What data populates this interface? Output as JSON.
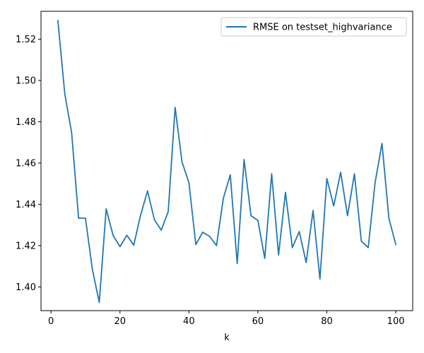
{
  "chart_data": {
    "type": "line",
    "title": "",
    "xlabel": "k",
    "ylabel": "",
    "xlim": [
      -2.9,
      104.9
    ],
    "ylim": [
      1.3885,
      1.5335
    ],
    "xticks": [
      0,
      20,
      40,
      60,
      80,
      100
    ],
    "yticks": [
      1.4,
      1.42,
      1.44,
      1.46,
      1.48,
      1.5,
      1.52
    ],
    "ytick_labels": [
      "1.40",
      "1.42",
      "1.44",
      "1.46",
      "1.48",
      "1.50",
      "1.52"
    ],
    "grid": false,
    "legend_position": "top-right",
    "series": [
      {
        "name": "RMSE on testset_highvariance",
        "color": "#1f77b4",
        "x": [
          2,
          4,
          6,
          8,
          10,
          12,
          14,
          16,
          18,
          20,
          22,
          24,
          26,
          28,
          30,
          32,
          34,
          36,
          38,
          40,
          42,
          44,
          46,
          48,
          50,
          52,
          54,
          56,
          58,
          60,
          62,
          64,
          66,
          68,
          70,
          72,
          74,
          76,
          78,
          80,
          82,
          84,
          86,
          88,
          90,
          92,
          94,
          96,
          98,
          100
        ],
        "values": [
          1.529,
          1.4935,
          1.4745,
          1.4333,
          1.4333,
          1.4085,
          1.3925,
          1.4378,
          1.425,
          1.4195,
          1.425,
          1.4202,
          1.4348,
          1.4465,
          1.4325,
          1.4275,
          1.4365,
          1.487,
          1.4605,
          1.4505,
          1.4205,
          1.4265,
          1.4245,
          1.42,
          1.443,
          1.4543,
          1.4113,
          1.4617,
          1.4345,
          1.4322,
          1.4138,
          1.4548,
          1.4155,
          1.4458,
          1.419,
          1.4268,
          1.4118,
          1.437,
          1.4038,
          1.4525,
          1.4392,
          1.4555,
          1.4345,
          1.4548,
          1.4222,
          1.419,
          1.4505,
          1.4695,
          1.4332,
          1.4205
        ]
      }
    ]
  }
}
